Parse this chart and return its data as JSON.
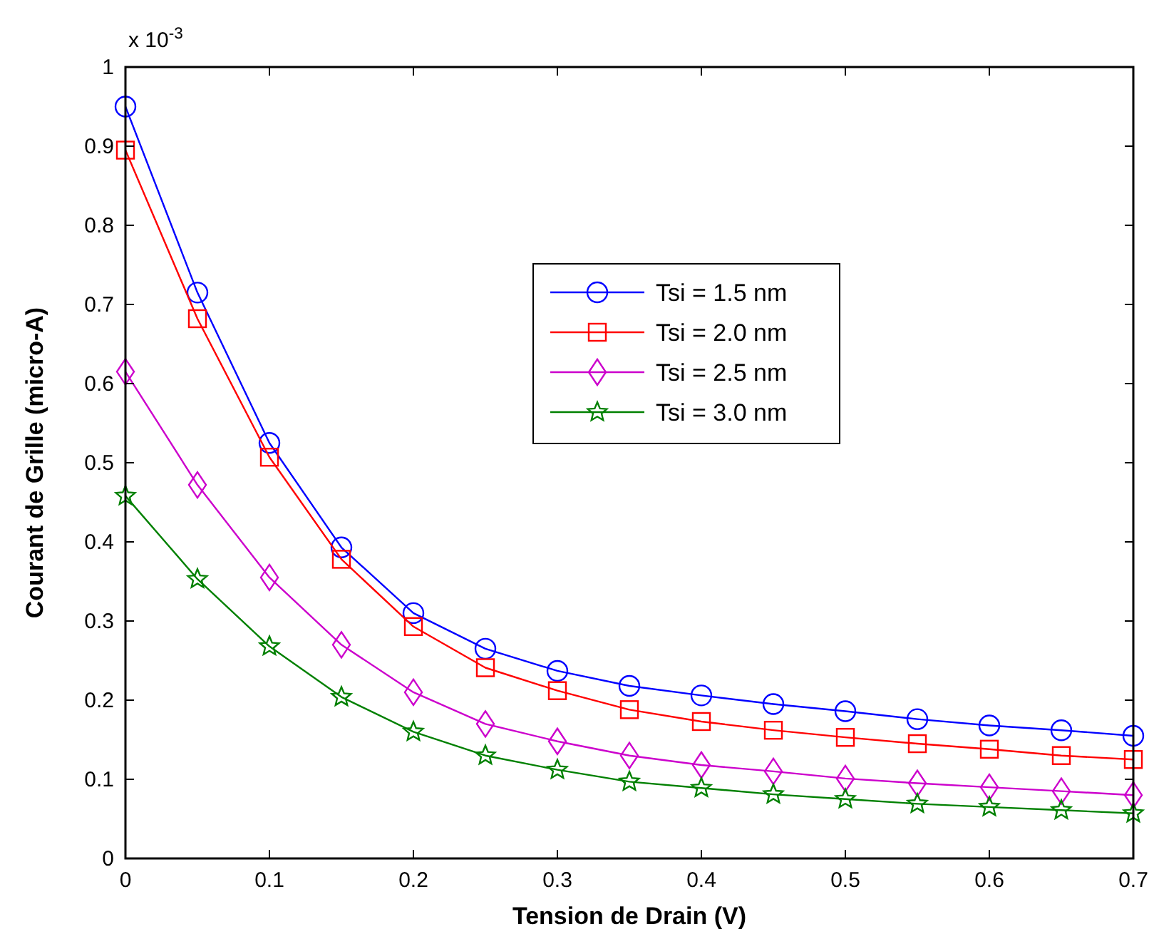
{
  "chart_data": {
    "type": "line",
    "xlabel": "Tension de Drain (V)",
    "ylabel": "Courant de Grille (micro-A)",
    "annotations": [
      "x 10$^{-3}$"
    ],
    "x": [
      0,
      0.05,
      0.1,
      0.15,
      0.2,
      0.25,
      0.3,
      0.35,
      0.4,
      0.45,
      0.5,
      0.55,
      0.6,
      0.65,
      0.7
    ],
    "xlim": [
      0,
      0.7
    ],
    "xticks": [
      0,
      0.1,
      0.2,
      0.3,
      0.4,
      0.5,
      0.6,
      0.7
    ],
    "ylim": [
      0,
      1
    ],
    "yticks": [
      0,
      0.1,
      0.2,
      0.3,
      0.4,
      0.5,
      0.6,
      0.7,
      0.8,
      0.9,
      1
    ],
    "grid": false,
    "legend": "top",
    "line_style": "solid",
    "series": [
      {
        "name": "Tsi = 1.5 nm",
        "color": "#0000ff",
        "marker": "circle",
        "values": [
          0.95,
          0.715,
          0.525,
          0.393,
          0.31,
          0.265,
          0.237,
          0.218,
          0.206,
          0.195,
          0.186,
          0.176,
          0.168,
          0.162,
          0.155
        ]
      },
      {
        "name": "Tsi = 2.0 nm",
        "color": "#ff0000",
        "marker": "square",
        "values": [
          0.895,
          0.682,
          0.507,
          0.378,
          0.293,
          0.241,
          0.212,
          0.188,
          0.173,
          0.162,
          0.153,
          0.145,
          0.138,
          0.13,
          0.125
        ]
      },
      {
        "name": "Tsi = 2.5 nm",
        "color": "#cc00cc",
        "marker": "diamond",
        "values": [
          0.615,
          0.472,
          0.355,
          0.27,
          0.21,
          0.17,
          0.148,
          0.13,
          0.118,
          0.11,
          0.101,
          0.095,
          0.09,
          0.085,
          0.08
        ]
      },
      {
        "name": "Tsi = 3.0 nm",
        "color": "#008000",
        "marker": "star",
        "values": [
          0.458,
          0.353,
          0.268,
          0.204,
          0.16,
          0.13,
          0.112,
          0.097,
          0.089,
          0.081,
          0.075,
          0.069,
          0.065,
          0.061,
          0.057
        ]
      }
    ]
  }
}
